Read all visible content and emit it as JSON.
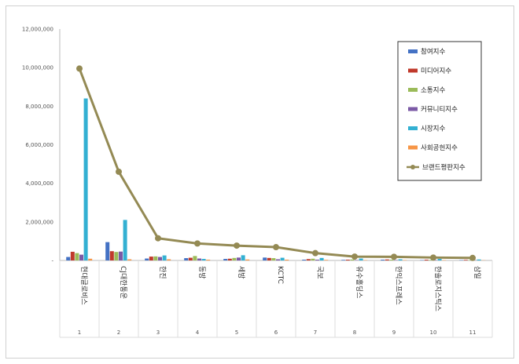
{
  "chart_data": {
    "type": "bar",
    "categories": [
      "현대글로비스",
      "CJ대한통운",
      "한진",
      "동방",
      "세방",
      "KCTC",
      "국보",
      "유수홀딩스",
      "한익스프레스",
      "한솔로지스틱스",
      "삼일"
    ],
    "ranks": [
      "1",
      "2",
      "3",
      "4",
      "5",
      "6",
      "7",
      "8",
      "9",
      "10",
      "11"
    ],
    "series": [
      {
        "name": "참여지수",
        "color": "#4472c4",
        "values": [
          180000,
          950000,
          100000,
          120000,
          80000,
          150000,
          40000,
          30000,
          40000,
          20000,
          20000
        ]
      },
      {
        "name": "미디어지수",
        "color": "#c0392b",
        "values": [
          450000,
          480000,
          200000,
          140000,
          90000,
          130000,
          70000,
          40000,
          50000,
          40000,
          30000
        ]
      },
      {
        "name": "소통지수",
        "color": "#9bbb59",
        "values": [
          380000,
          440000,
          210000,
          230000,
          130000,
          120000,
          90000,
          50000,
          40000,
          30000,
          20000
        ]
      },
      {
        "name": "커뮤니티지수",
        "color": "#7b5aa6",
        "values": [
          300000,
          460000,
          180000,
          100000,
          150000,
          60000,
          40000,
          20000,
          20000,
          20000,
          10000
        ]
      },
      {
        "name": "시장지수",
        "color": "#33b0d2",
        "values": [
          8400000,
          2100000,
          260000,
          80000,
          270000,
          140000,
          130000,
          100000,
          60000,
          80000,
          50000
        ]
      },
      {
        "name": "사회공헌지수",
        "color": "#f79646",
        "values": [
          90000,
          60000,
          60000,
          40000,
          50000,
          40000,
          30000,
          20000,
          20000,
          20000,
          10000
        ]
      }
    ],
    "line": {
      "name": "브랜드평판지수",
      "color": "#948a54",
      "values": [
        9950000,
        4600000,
        1150000,
        880000,
        770000,
        690000,
        380000,
        200000,
        190000,
        150000,
        130000
      ]
    },
    "ylim": [
      0,
      12000000
    ],
    "yticks": [
      "12,000,000",
      "10,000,000",
      "8,000,000",
      "6,000,000",
      "4,000,000",
      "2,000,000",
      "-"
    ],
    "ytick_values": [
      12000000,
      10000000,
      8000000,
      6000000,
      4000000,
      2000000,
      0
    ],
    "legend_position": "top-right",
    "grid": false
  }
}
